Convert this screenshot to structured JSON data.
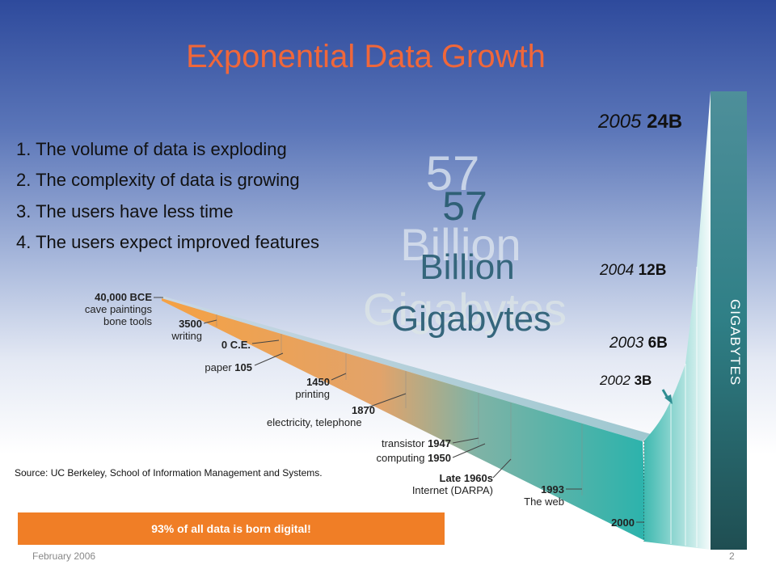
{
  "title": "Exponential Data Growth",
  "points": [
    "1.  The volume of data is exploding",
    "2.  The complexity of data is growing",
    "3.  The users have less time",
    "4.  The users expect improved features"
  ],
  "ghost_text": {
    "number": "57",
    "unit_1": "Billion",
    "unit_2": "Gigabytes"
  },
  "chart_data": {
    "type": "area",
    "title": "",
    "ylabel": "GIGABYTES",
    "series": [
      {
        "x": [
          "2002",
          "2003",
          "2004",
          "2005"
        ],
        "values": [
          3,
          6,
          12,
          24
        ],
        "value_labels": [
          "3B",
          "6B",
          "12B",
          "24B"
        ]
      }
    ],
    "timeline": [
      {
        "year": "40,000 BCE",
        "event": "cave paintings\nbone tools"
      },
      {
        "year": "3500",
        "event": "writing"
      },
      {
        "year": "0 C.E.",
        "event": ""
      },
      {
        "year": "105",
        "event": "paper"
      },
      {
        "year": "1450",
        "event": "printing"
      },
      {
        "year": "1870",
        "event": "electricity, telephone"
      },
      {
        "year": "1947",
        "event": "transistor"
      },
      {
        "year": "1950",
        "event": "computing"
      },
      {
        "year": "Late 1960s",
        "event": "Internet (DARPA)"
      },
      {
        "year": "1993",
        "event": "The web"
      },
      {
        "year": "2000",
        "event": ""
      }
    ]
  },
  "source": "Source: UC Berkeley, School of Information Management and Systems.",
  "banner": "93% of all data is born digital!",
  "footer": {
    "date": "February 2006",
    "page": "2"
  },
  "colors": {
    "title": "#f0673a",
    "banner": "#f07e26",
    "bar": "#2f7f86",
    "timeline_start": "#f5a143",
    "timeline_end": "#29b5ae"
  }
}
